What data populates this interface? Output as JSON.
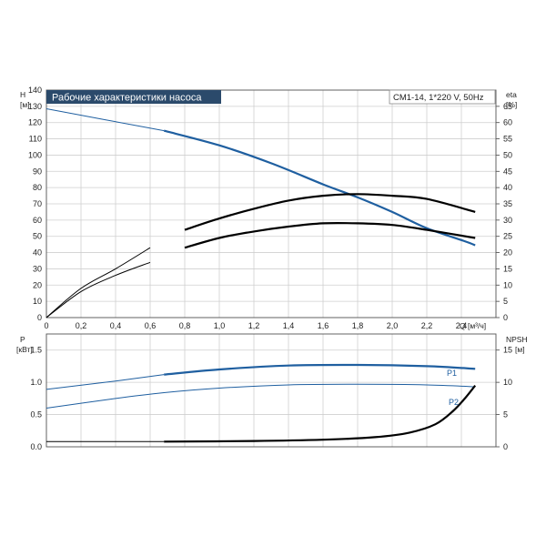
{
  "chart_data": [
    {
      "type": "line",
      "title": "Рабочие характеристики насоса",
      "model_label": "CM1-14, 1*220 V, 50Hz",
      "xlabel": "Q [м³/ч]",
      "xlim": [
        0,
        2.6
      ],
      "x_ticks": [
        "0",
        "0,2",
        "0,4",
        "0,6",
        "0,8",
        "1,0",
        "1,2",
        "1,4",
        "1,6",
        "1,8",
        "2,0",
        "2,2",
        "2,4"
      ],
      "ylabel_left": "H",
      "ylabel_left_unit": "[м]",
      "ylim_left": [
        0,
        140
      ],
      "y_ticks_left": [
        "0",
        "10",
        "20",
        "30",
        "40",
        "50",
        "60",
        "70",
        "80",
        "90",
        "100",
        "110",
        "120",
        "130",
        "140"
      ],
      "ylabel_right": "eta",
      "ylabel_right_unit": "[%]",
      "ylim_right": [
        0,
        70
      ],
      "y_ticks_right": [
        "0",
        "5",
        "10",
        "15",
        "20",
        "25",
        "30",
        "35",
        "40",
        "45",
        "50",
        "55",
        "60",
        "65"
      ],
      "grid": true,
      "series": [
        {
          "axis": "left",
          "color": "#1f5fa0",
          "x": [
            0,
            0.68,
            1.0,
            1.3,
            1.6,
            1.8,
            2.0,
            2.2,
            2.42,
            2.48
          ],
          "values": [
            128.5,
            115,
            106,
            95,
            82,
            74,
            65,
            55,
            47,
            44.5
          ],
          "op_from": 0.68
        },
        {
          "axis": "right",
          "color": "#000000",
          "x": [
            0,
            0.2,
            0.4,
            0.6,
            0.8,
            1.0,
            1.2,
            1.4,
            1.6,
            1.8,
            2.0,
            2.2,
            2.48
          ],
          "values": [
            0,
            9,
            15,
            21.5,
            27,
            30.5,
            33.5,
            36,
            37.5,
            38,
            37.5,
            36.5,
            32.5
          ],
          "op_from": 0.68
        },
        {
          "axis": "right",
          "color": "#000000",
          "x": [
            0,
            0.2,
            0.4,
            0.6,
            0.8,
            1.0,
            1.2,
            1.4,
            1.6,
            1.8,
            2.0,
            2.2,
            2.48
          ],
          "values": [
            0,
            8,
            13,
            17,
            21.5,
            24.5,
            26.5,
            28,
            29,
            29,
            28.5,
            27,
            24.5
          ],
          "op_from": 0.68
        }
      ]
    },
    {
      "type": "line",
      "ylabel_left": "P",
      "ylabel_left_unit": "[кВт]",
      "ylim_left": [
        0,
        1.75
      ],
      "y_ticks_left": [
        "0.0",
        "0.5",
        "1.0",
        "1.5"
      ],
      "ylabel_right": "NPSH",
      "ylabel_right_unit": "[м]",
      "ylim_right": [
        0,
        17.5
      ],
      "y_ticks_right": [
        "0",
        "5",
        "10",
        "15"
      ],
      "xlim": [
        0,
        2.6
      ],
      "grid": true,
      "series": [
        {
          "name": "P1",
          "axis": "left",
          "color": "#1f5fa0",
          "x": [
            0,
            0.4,
            0.68,
            1.0,
            1.4,
            1.8,
            2.2,
            2.48
          ],
          "values": [
            0.89,
            1.02,
            1.12,
            1.2,
            1.26,
            1.27,
            1.25,
            1.21
          ],
          "op_from": 0.68
        },
        {
          "name": "P2",
          "axis": "left",
          "color": "#1f5fa0",
          "x": [
            0,
            0.4,
            0.68,
            1.0,
            1.4,
            1.8,
            2.2,
            2.48
          ],
          "values": [
            0.6,
            0.75,
            0.84,
            0.91,
            0.96,
            0.97,
            0.96,
            0.93
          ],
          "op_from": 2.7
        },
        {
          "name": "NPSH",
          "axis": "right",
          "color": "#000000",
          "x": [
            0,
            0.68,
            1.2,
            1.6,
            1.9,
            2.1,
            2.25,
            2.35,
            2.42,
            2.48
          ],
          "values": [
            0.8,
            0.8,
            0.9,
            1.1,
            1.5,
            2.2,
            3.5,
            5.5,
            7.5,
            9.5
          ],
          "op_from": 0.68
        }
      ]
    }
  ]
}
